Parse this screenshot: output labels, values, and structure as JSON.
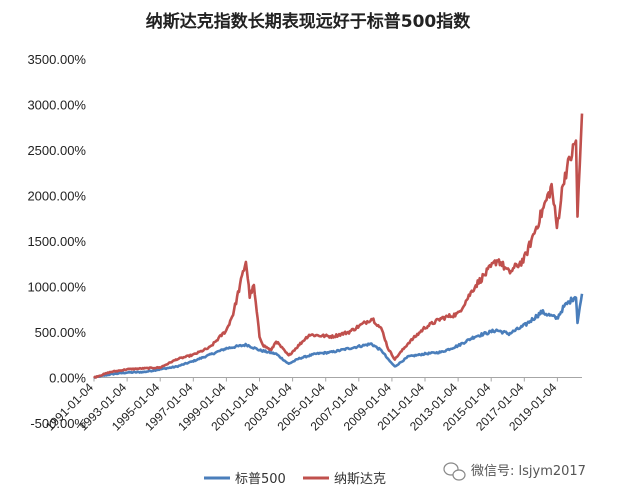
{
  "chart_data": {
    "type": "line",
    "title": "纳斯达克指数长期表现远好于标普500指数",
    "xlabel": "",
    "ylabel": "",
    "ylim": [
      -500,
      3500
    ],
    "yticks": [
      "-500.00%",
      "0.00%",
      "500.00%",
      "1000.00%",
      "1500.00%",
      "2000.00%",
      "2500.00%",
      "3000.00%",
      "3500.00%"
    ],
    "xticks": [
      "1991-01-04",
      "1993-01-04",
      "1995-01-04",
      "1997-01-04",
      "1999-01-04",
      "2001-01-04",
      "2003-01-04",
      "2005-01-04",
      "2007-01-04",
      "2009-01-04",
      "2011-01-04",
      "2013-01-04",
      "2015-01-04",
      "2017-01-04",
      "2019-01-04"
    ],
    "x_range": [
      "1991-01-04",
      "2020-06-30"
    ],
    "grid": false,
    "legend_position": "bottom",
    "series": [
      {
        "name": "标普500",
        "color": "#4a7ebb",
        "x": [
          "1991-01-04",
          "1992-01-04",
          "1993-01-04",
          "1994-01-04",
          "1995-01-04",
          "1996-01-04",
          "1997-01-04",
          "1998-01-04",
          "1999-01-04",
          "2000-03-24",
          "2001-01-04",
          "2002-01-04",
          "2002-10-09",
          "2003-06-01",
          "2004-06-01",
          "2005-06-01",
          "2006-06-01",
          "2007-10-09",
          "2008-06-01",
          "2008-10-10",
          "2009-03-09",
          "2010-01-04",
          "2011-01-04",
          "2012-01-04",
          "2013-01-04",
          "2014-01-04",
          "2015-05-01",
          "2016-02-01",
          "2017-01-04",
          "2018-01-26",
          "2018-12-24",
          "2019-06-01",
          "2020-02-19",
          "2020-03-23",
          "2020-06-30"
        ],
        "values": [
          0,
          35,
          55,
          60,
          90,
          120,
          180,
          250,
          320,
          360,
          300,
          260,
          150,
          210,
          260,
          280,
          320,
          370,
          290,
          200,
          120,
          230,
          260,
          280,
          350,
          450,
          520,
          480,
          570,
          720,
          650,
          780,
          900,
          600,
          920
        ]
      },
      {
        "name": "纳斯达克",
        "color": "#c0504d",
        "x": [
          "1991-01-04",
          "1992-01-04",
          "1993-01-04",
          "1994-01-04",
          "1995-01-04",
          "1996-01-04",
          "1997-01-04",
          "1998-01-04",
          "1999-01-04",
          "1999-06-01",
          "2000-03-10",
          "2000-06-01",
          "2000-09-01",
          "2001-01-04",
          "2001-04-04",
          "2001-09-21",
          "2002-01-04",
          "2002-10-09",
          "2003-06-01",
          "2004-01-04",
          "2005-06-01",
          "2006-06-01",
          "2007-10-31",
          "2008-06-01",
          "2008-10-10",
          "2009-03-09",
          "2010-01-04",
          "2011-01-04",
          "2012-01-04",
          "2013-01-04",
          "2014-01-04",
          "2015-06-01",
          "2016-02-01",
          "2017-01-04",
          "2018-08-29",
          "2018-12-24",
          "2019-06-01",
          "2020-02-19",
          "2020-03-23",
          "2020-06-30"
        ],
        "values": [
          0,
          60,
          90,
          100,
          110,
          200,
          250,
          330,
          520,
          700,
          1280,
          900,
          1000,
          450,
          350,
          300,
          400,
          240,
          360,
          470,
          450,
          500,
          650,
          520,
          320,
          200,
          380,
          550,
          650,
          700,
          1000,
          1300,
          1150,
          1300,
          2100,
          1650,
          2200,
          2600,
          1750,
          2900
        ]
      }
    ]
  },
  "watermark": {
    "icon": "wechat-icon",
    "text": "微信号: lsjym2017"
  }
}
